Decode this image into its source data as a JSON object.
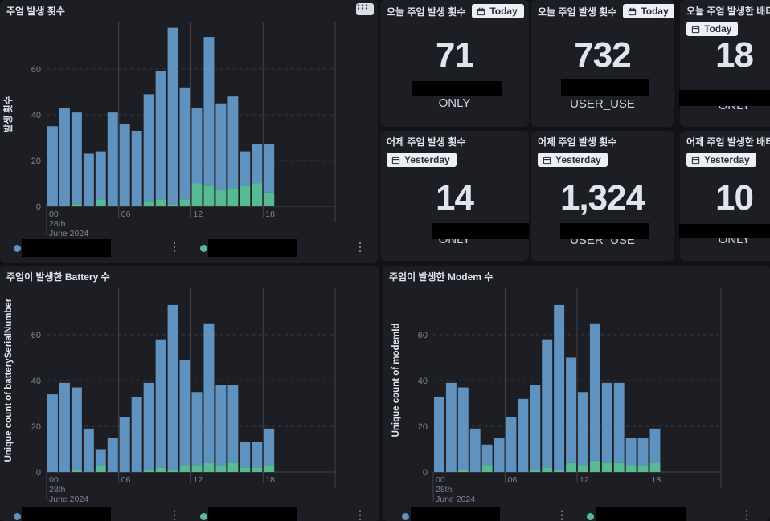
{
  "colors": {
    "page_bg": "#121318",
    "panel_bg": "#1d1e24",
    "bar_blue": "#6092C0",
    "bar_green": "#56BB93",
    "grid_dashed": "#383b42",
    "grid_solid": "#40434a",
    "axis_text": "#7f8490",
    "title_text": "#dfe5ef",
    "badge_bg": "#eceff5",
    "redaction": "#000000"
  },
  "panels": {
    "occurrences": {
      "title": "주엄 발생 횟수",
      "ylabel": "발생 횟수"
    },
    "today_only": {
      "title": "오늘 주엄 발생 횟수",
      "badge": "Today",
      "value": "71",
      "label": "ONLY"
    },
    "today_user": {
      "title": "오늘 주엄 발생 횟수",
      "badge": "Today",
      "value": "732",
      "label": "USER_USE"
    },
    "today_batt": {
      "title": "오늘 주엄 발생한 배터리 수",
      "badge": "Today",
      "value": "18",
      "label": "ONLY"
    },
    "yest_only": {
      "title": "어제 주엄 발생 횟수",
      "badge": "Yesterday",
      "value": "14",
      "label": "ONLY"
    },
    "yest_user": {
      "title": "어제 주엄 발생 횟수",
      "badge": "Yesterday",
      "value": "1,324",
      "label": "USER_USE"
    },
    "yest_batt": {
      "title": "어제 주엄 발생한 배터리 수",
      "badge": "Yesterday",
      "value": "10",
      "label": "ONLY"
    },
    "battery_chart": {
      "title": "주엄이 발생한 Battery 수",
      "ylabel": "Unique count of batterySerialNumber"
    },
    "modem_chart": {
      "title": "주엄이 발생한 Modem 수",
      "ylabel": "Unique count of modemId"
    }
  },
  "axis": {
    "y_ticks": [
      0,
      20,
      40,
      60
    ],
    "x_tick_hours": [
      0,
      6,
      12,
      18
    ],
    "x_tick_labels": [
      "00",
      "06",
      "12",
      "18"
    ],
    "date_line1": "28th",
    "date_line2": "June 2024"
  },
  "legend": {
    "items": [
      {
        "color": "#6092C0",
        "label_redacted": true
      },
      {
        "color": "#56BB93",
        "label_redacted": true
      }
    ],
    "menu_glyph": "⋮"
  },
  "chart_data": [
    {
      "type": "bar",
      "stacked": true,
      "title": "주엄 발생 횟수",
      "xlabel": "28th June 2024",
      "ylabel": "발생 횟수",
      "ylim": [
        0,
        80
      ],
      "x_hours": [
        0,
        1,
        2,
        3,
        4,
        5,
        6,
        7,
        8,
        9,
        10,
        11,
        12,
        13,
        14,
        15,
        16,
        17,
        18
      ],
      "totals": [
        35,
        43,
        41,
        23,
        24,
        41,
        36,
        33,
        49,
        59,
        78,
        52,
        43,
        74,
        45,
        48,
        24,
        27,
        27
      ],
      "series": [
        {
          "name": "green-series (label redacted)",
          "color": "#56BB93",
          "values": [
            0,
            0,
            1,
            0,
            3,
            0,
            0,
            0,
            2,
            3,
            1,
            3,
            10,
            9,
            7,
            8,
            9,
            10,
            6
          ]
        },
        {
          "name": "blue-series (label redacted)",
          "color": "#6092C0",
          "values": [
            35,
            43,
            40,
            23,
            21,
            41,
            36,
            33,
            47,
            56,
            77,
            49,
            33,
            65,
            38,
            40,
            15,
            17,
            21
          ]
        }
      ]
    },
    {
      "type": "bar",
      "stacked": true,
      "title": "주엄이 발생한 Battery 수",
      "xlabel": "28th June 2024",
      "ylabel": "Unique count of batterySerialNumber",
      "ylim": [
        0,
        80
      ],
      "x_hours": [
        0,
        1,
        2,
        3,
        4,
        5,
        6,
        7,
        8,
        9,
        10,
        11,
        12,
        13,
        14,
        15,
        16,
        17,
        18
      ],
      "totals": [
        34,
        39,
        37,
        19,
        10,
        15,
        24,
        33,
        39,
        58,
        73,
        49,
        35,
        65,
        38,
        38,
        13,
        13,
        19
      ],
      "series": [
        {
          "name": "green-series (label redacted)",
          "color": "#56BB93",
          "values": [
            0,
            0,
            1,
            0,
            3,
            0,
            0,
            0,
            1,
            2,
            1,
            3,
            3,
            4,
            3,
            4,
            2,
            2,
            3
          ]
        },
        {
          "name": "blue-series (label redacted)",
          "color": "#6092C0",
          "values": [
            34,
            39,
            36,
            19,
            7,
            15,
            24,
            33,
            38,
            56,
            72,
            46,
            32,
            61,
            35,
            34,
            11,
            11,
            16
          ]
        }
      ]
    },
    {
      "type": "bar",
      "stacked": true,
      "title": "주엄이 발생한 Modem 수",
      "xlabel": "28th June 2024",
      "ylabel": "Unique count of modemId",
      "ylim": [
        0,
        80
      ],
      "x_hours": [
        0,
        1,
        2,
        3,
        4,
        5,
        6,
        7,
        8,
        9,
        10,
        11,
        12,
        13,
        14,
        15,
        16,
        17,
        18
      ],
      "totals": [
        33,
        39,
        37,
        19,
        12,
        15,
        24,
        32,
        38,
        58,
        73,
        50,
        35,
        65,
        39,
        39,
        15,
        15,
        19
      ],
      "series": [
        {
          "name": "green-series (label redacted)",
          "color": "#56BB93",
          "values": [
            0,
            0,
            1,
            0,
            3,
            0,
            0,
            0,
            1,
            2,
            1,
            4,
            3,
            5,
            4,
            4,
            3,
            3,
            4
          ]
        },
        {
          "name": "blue-series (label redacted)",
          "color": "#6092C0",
          "values": [
            33,
            39,
            36,
            19,
            9,
            15,
            24,
            32,
            37,
            56,
            72,
            46,
            32,
            60,
            35,
            35,
            12,
            12,
            15
          ]
        }
      ]
    }
  ]
}
